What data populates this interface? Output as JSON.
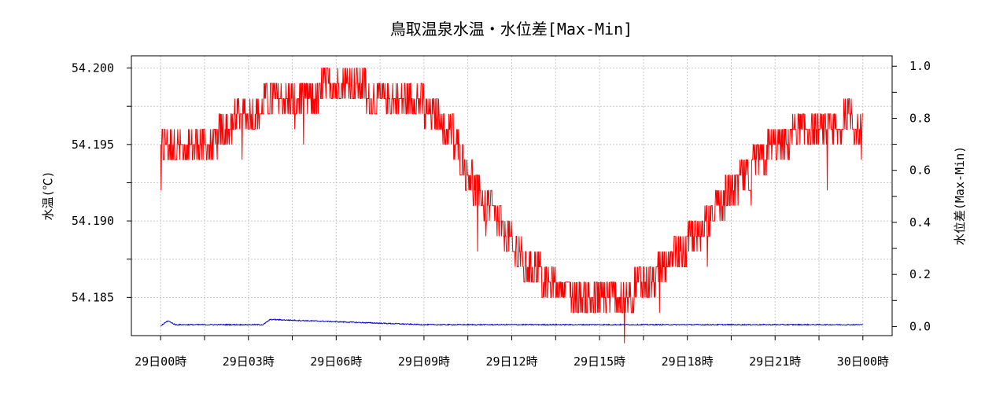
{
  "chart_data": {
    "type": "line",
    "title": "鳥取温泉水温・水位差[Max-Min]",
    "ylabel_left": "水温(℃)",
    "ylabel_right": "水位差(Max-Min)",
    "xlabel": "",
    "x_ticks": [
      "29日00時",
      "29日03時",
      "29日06時",
      "29日09時",
      "29日12時",
      "29日15時",
      "29日18時",
      "29日21時",
      "30日00時"
    ],
    "xlim_hours": [
      -1,
      25
    ],
    "ylim_left": [
      54.1825,
      54.2008
    ],
    "ylim_right": [
      -0.035,
      1.04
    ],
    "left_ticks": [
      54.185,
      54.19,
      54.195,
      54.2
    ],
    "left_tick_labels": [
      "54.185",
      "54.190",
      "54.195",
      "54.200"
    ],
    "right_ticks": [
      0.0,
      0.2,
      0.4,
      0.6,
      0.8,
      1.0
    ],
    "right_tick_labels": [
      "0.0",
      "0.2",
      "0.4",
      "0.6",
      "0.8",
      "1.0"
    ],
    "grid": true,
    "colors": {
      "temperature": "#ff0000",
      "level_diff": "#0000cc"
    },
    "series": [
      {
        "axis": "left",
        "x_hours": [
          0,
          0.5,
          1,
          1.5,
          2,
          2.5,
          3,
          3.5,
          4,
          4.5,
          5,
          5.5,
          6,
          6.5,
          7,
          7.5,
          8,
          8.5,
          9,
          9.5,
          10,
          10.5,
          11,
          11.5,
          12,
          12.5,
          13,
          13.5,
          14,
          14.5,
          15,
          15.5,
          16,
          16.5,
          17,
          17.5,
          18,
          18.5,
          19,
          19.5,
          20,
          20.5,
          21,
          21.5,
          22,
          22.5,
          23,
          23.5,
          24
        ],
        "values": [
          54.1945,
          54.195,
          54.1955,
          54.195,
          54.1955,
          54.1965,
          54.197,
          54.1975,
          54.1978,
          54.1978,
          54.198,
          54.1985,
          54.1985,
          54.1988,
          54.1985,
          54.1978,
          54.1978,
          54.1978,
          54.1975,
          54.1968,
          54.1955,
          54.193,
          54.1915,
          54.19,
          54.1885,
          54.187,
          54.1865,
          54.1855,
          54.1855,
          54.185,
          54.1848,
          54.1845,
          54.1852,
          54.186,
          54.1865,
          54.1875,
          54.1885,
          54.1895,
          54.1908,
          54.192,
          54.193,
          54.194,
          54.195,
          54.1955,
          54.1958,
          54.1955,
          54.196,
          54.1968,
          54.196
        ]
      },
      {
        "axis": "right",
        "x_hours": [
          0,
          0.25,
          0.5,
          3.5,
          3.75,
          9,
          15,
          24,
          24.25
        ],
        "values": [
          0.0,
          0.02,
          0.005,
          0.005,
          0.025,
          0.005,
          0.005,
          0.005,
          0.01
        ]
      }
    ]
  }
}
